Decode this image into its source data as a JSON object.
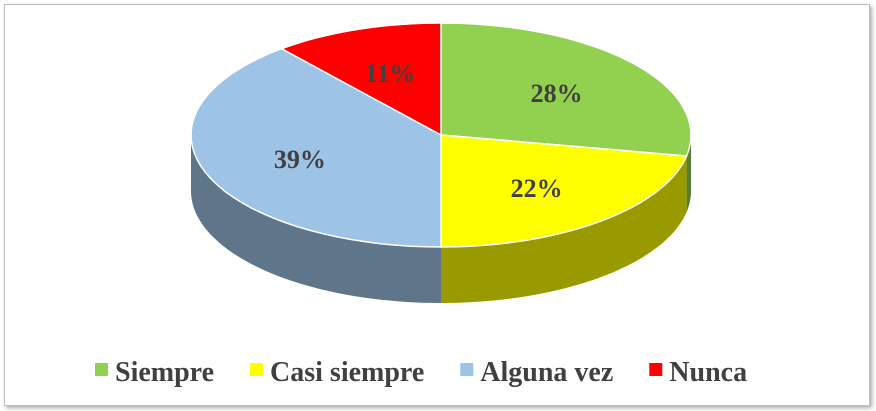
{
  "chart_data": {
    "type": "pie",
    "categories": [
      "Siempre",
      "Casi siempre",
      "Alguna vez",
      "Nunca"
    ],
    "values": [
      28,
      22,
      39,
      11
    ],
    "value_labels": [
      "28%",
      "22%",
      "39%",
      "11%"
    ],
    "colors": [
      "#92d050",
      "#ffff00",
      "#9dc3e6",
      "#ff0000"
    ],
    "legend": "bottom"
  }
}
